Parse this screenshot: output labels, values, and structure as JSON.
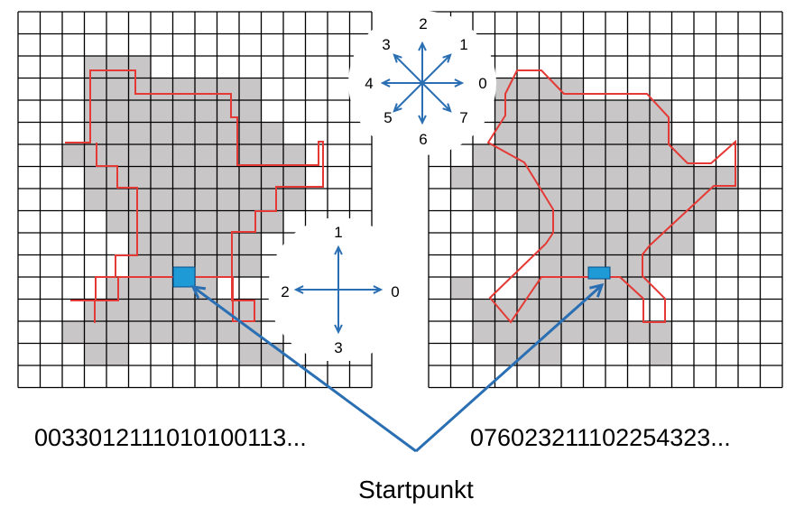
{
  "left_panel": {
    "chain_code": "0033012111010100113...",
    "compass": {
      "labels": [
        "0",
        "1",
        "2",
        "3"
      ]
    }
  },
  "right_panel": {
    "chain_code": "076023211102254323..."
  },
  "start_label": "Startpunkt",
  "compass8": {
    "labels": [
      "0",
      "1",
      "2",
      "3",
      "4",
      "5",
      "6",
      "7"
    ]
  },
  "colors": {
    "grid_line": "#000000",
    "shape_fill": "#c8c6c6",
    "boundary": "#e53935",
    "start_cell": "#1e9ad6",
    "arrow": "#2a6fb3"
  }
}
